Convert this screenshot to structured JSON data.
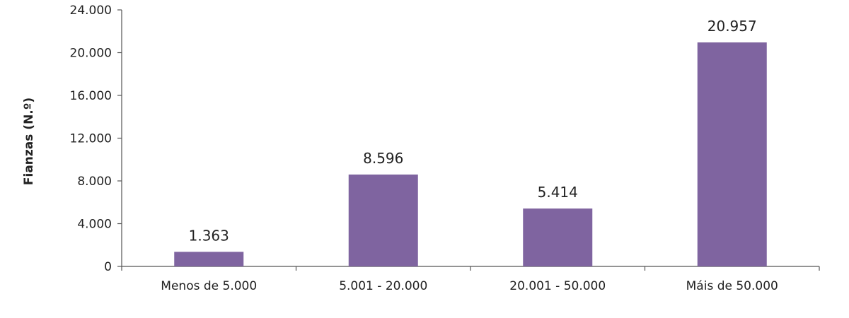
{
  "chart_data": {
    "type": "bar",
    "categories": [
      "Menos de 5.000",
      "5.001 - 20.000",
      "20.001 - 50.000",
      "Máis de 50.000"
    ],
    "values": [
      1363,
      8596,
      5414,
      20957
    ],
    "value_labels": [
      "1.363",
      "8.596",
      "5.414",
      "20.957"
    ],
    "title": "",
    "xlabel": "",
    "ylabel": "Fianzas (N.º)",
    "ylim": [
      0,
      24000
    ],
    "yticks": [
      0,
      4000,
      8000,
      12000,
      16000,
      20000,
      24000
    ],
    "ytick_labels": [
      "0",
      "4.000",
      "8.000",
      "12.000",
      "16.000",
      "20.000",
      "24.000"
    ],
    "grid": false,
    "legend": "none",
    "bar_color": "#7f64a0"
  }
}
